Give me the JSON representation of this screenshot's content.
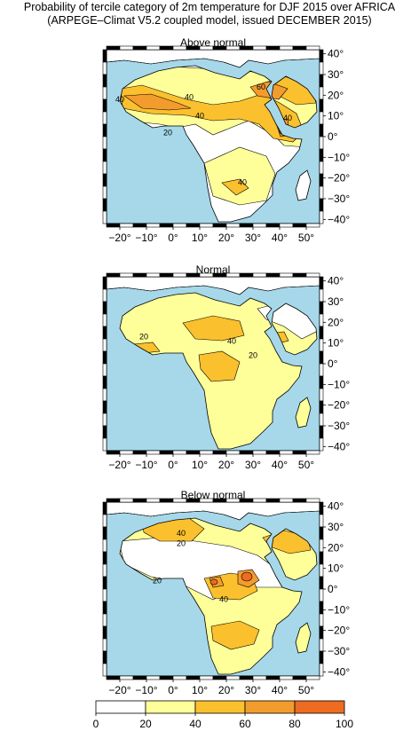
{
  "title_line1": "Probability of tercile category of 2m temperature for DJF 2015 over AFRICA",
  "title_line2": "(ARPEGE–Climat V5.2 coupled model, issued DECEMBER  2015)",
  "colors": {
    "ocean": "#a6d8ea",
    "land_white": "#ffffff",
    "c20_40": "#ffff99",
    "c40_60": "#fbc02d",
    "c60_80": "#f39c2e",
    "c80_100": "#ee6b21"
  },
  "lon_ticks": [
    "−20°",
    "−10°",
    "0°",
    "10°",
    "20°",
    "30°",
    "40°",
    "50°"
  ],
  "lat_ticks": [
    "40°",
    "30°",
    "20°",
    "10°",
    "0°",
    "−10°",
    "−20°",
    "−30°",
    "−40°"
  ],
  "panels": [
    {
      "title": "Above normal",
      "contour_labels": [
        {
          "text": "40"
        },
        {
          "text": "40"
        },
        {
          "text": "60"
        },
        {
          "text": "40"
        },
        {
          "text": "40"
        },
        {
          "text": "40"
        },
        {
          "text": "20"
        }
      ]
    },
    {
      "title": "Normal",
      "contour_labels": [
        {
          "text": "20"
        },
        {
          "text": "40"
        },
        {
          "text": "20"
        }
      ]
    },
    {
      "title": "Below normal",
      "contour_labels": [
        {
          "text": "40"
        },
        {
          "text": "20"
        },
        {
          "text": "20"
        },
        {
          "text": "40"
        }
      ]
    }
  ],
  "colorbar": {
    "ticks": [
      "0",
      "20",
      "40",
      "60",
      "80",
      "100"
    ]
  }
}
